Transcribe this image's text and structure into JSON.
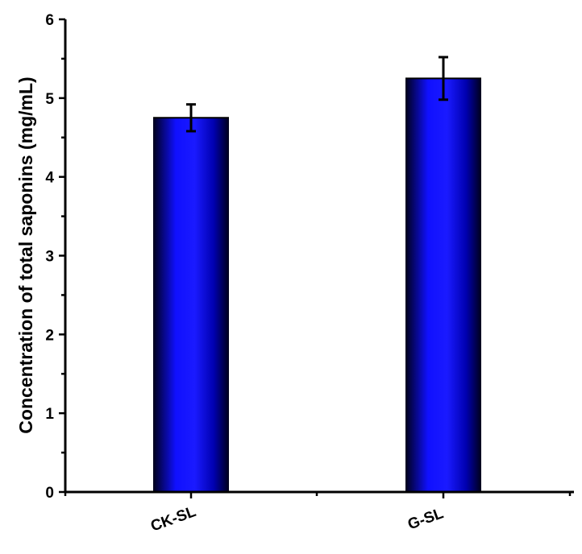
{
  "chart_data": {
    "type": "bar",
    "categories": [
      "CK-SL",
      "G-SL"
    ],
    "values": [
      4.75,
      5.25
    ],
    "errors": [
      0.17,
      0.27
    ],
    "ylabel": "Concentration of total saponins (mg/mL)",
    "xlabel": "",
    "ylim": [
      0,
      6
    ],
    "yticks": [
      0,
      1,
      2,
      3,
      4,
      5,
      6
    ],
    "grid": false,
    "bar_color": "#1010ff",
    "bar_edge_color": "#00001a"
  }
}
